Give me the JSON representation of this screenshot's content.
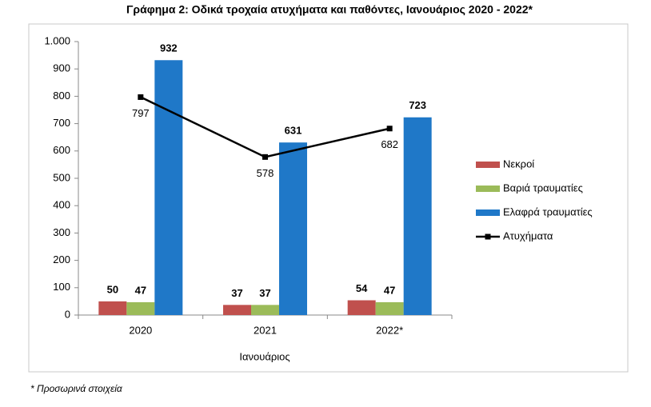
{
  "chart_data": {
    "type": "bar",
    "title": "Γράφημα 2: Οδικά τροχαία ατυχήματα και παθόντες, Ιανουάριος 2020 - 2022*",
    "x_label": "Ιανουάριος",
    "categories": [
      "2020",
      "2021",
      "2022*"
    ],
    "series": [
      {
        "name": "Νεκροί",
        "color": "#c0504d",
        "values": [
          50,
          37,
          54
        ]
      },
      {
        "name": "Βαριά τραυματίες",
        "color": "#9bbb59",
        "values": [
          47,
          37,
          47
        ]
      },
      {
        "name": "Ελαφρά τραυματίες",
        "color": "#1f78c8",
        "values": [
          932,
          631,
          723
        ]
      },
      {
        "name": "Ατυχήματα",
        "color": "#000000",
        "type": "line",
        "values": [
          797,
          578,
          682
        ]
      }
    ],
    "ylim": [
      0,
      1000
    ],
    "yticks": [
      0,
      100,
      200,
      300,
      400,
      500,
      600,
      700,
      800,
      900,
      {
        "value": 1000,
        "label": "1.000"
      }
    ],
    "grid": false,
    "legend": "right",
    "footnote": "* Προσωρινά στοιχεία"
  }
}
